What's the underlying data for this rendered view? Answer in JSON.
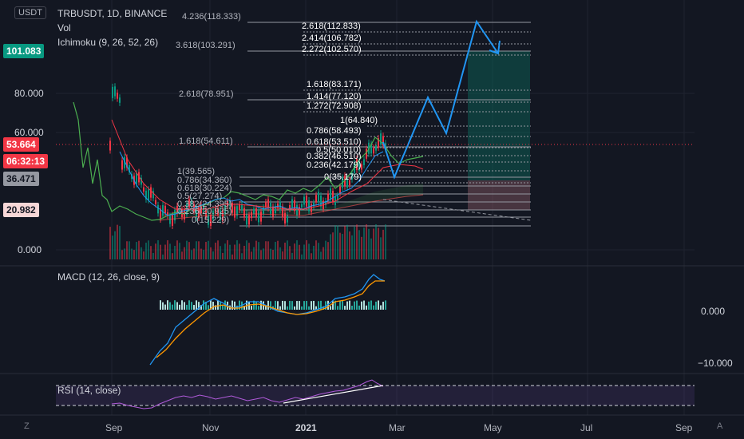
{
  "currency_badge": "USDT",
  "legend": {
    "symbol": "TRBUSDT, 1D, BINANCE",
    "vol": "Vol",
    "ichimoku": "Ichimoku (9, 26, 52, 26)"
  },
  "macd_label": "MACD (12, 26, close, 9)",
  "rsi_label": "RSI (14, close)",
  "left_axis": {
    "ticks": [
      "80.000",
      "60.000",
      "0.000"
    ],
    "tags": [
      {
        "text": "101.083",
        "bg": "#089981",
        "fg": "#ffffff"
      },
      {
        "text": "53.664",
        "bg": "#f23645",
        "fg": "#ffffff"
      },
      {
        "text": "06:32:13",
        "bg": "#f23645",
        "fg": "#ffffff"
      },
      {
        "text": "36.471",
        "bg": "#9598a1",
        "fg": "#131722"
      },
      {
        "text": "20.982",
        "bg": "#f7d7d7",
        "fg": "#131722"
      }
    ]
  },
  "macd_axis": [
    "0.000",
    "−10.000"
  ],
  "x_axis": [
    "Sep",
    "Nov",
    "2021",
    "Mar",
    "May",
    "Jul",
    "Sep"
  ],
  "corner": {
    "left": "Z",
    "right": "A"
  },
  "fib_levels": [
    "4.236(118.333)",
    "2.618(112.833)",
    "2.414(106.782)",
    "3.618(103.291)",
    "2.272(102.570)",
    "1.618(83.171)",
    "1.414(77.120)",
    "2.618(78.951)",
    "1.272(72.908)",
    "1(64.840)",
    "0.786(58.493)",
    "0.618(53.510)",
    "1.618(54.611)",
    "0.5(50.010)",
    "0.382(46.510)",
    "0.236(42.179)",
    "1(39.565)",
    "0(35.179)",
    "0.786(34.360)",
    "0.618(30.224)",
    "0.5(27.274)",
    "0.382(24.395)",
    "0.236(20.925)",
    "0(15.229)"
  ],
  "colors": {
    "up": "#089981",
    "down": "#f23645",
    "projection": "#2196f3",
    "ichimoku_lagging": "#4caf50",
    "rsi": "#b05ad9"
  }
}
